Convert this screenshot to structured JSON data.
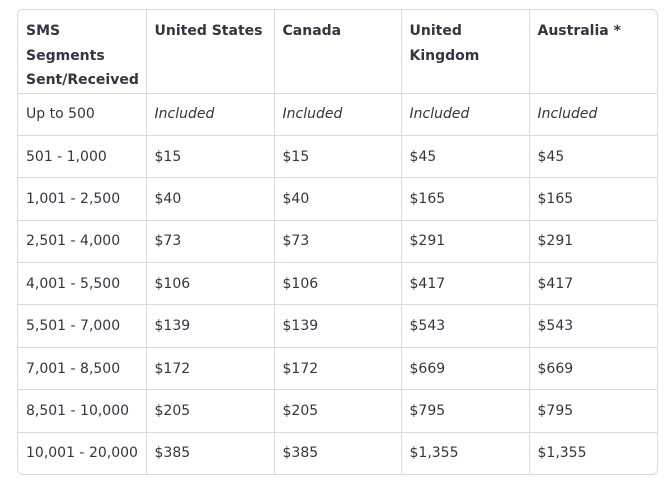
{
  "table": {
    "headers": [
      "SMS Segments Sent/Received",
      "United States",
      "Canada",
      "United Kingdom",
      "Australia *"
    ],
    "rows": [
      [
        "Up to 500",
        "Included",
        "Included",
        "Included",
        "Included"
      ],
      [
        "501 - 1,000",
        "$15",
        "$15",
        "$45",
        "$45"
      ],
      [
        "1,001 - 2,500",
        "$40",
        "$40",
        "$165",
        "$165"
      ],
      [
        "2,501 - 4,000",
        "$73",
        "$73",
        "$291",
        "$291"
      ],
      [
        "4,001 - 5,500",
        "$106",
        "$106",
        "$417",
        "$417"
      ],
      [
        "5,501 - 7,000",
        "$139",
        "$139",
        "$543",
        "$543"
      ],
      [
        "7,001 - 8,500",
        "$172",
        "$172",
        "$669",
        "$669"
      ],
      [
        "8,501 - 10,000",
        "$205",
        "$205",
        "$795",
        "$795"
      ],
      [
        "10,001 - 20,000",
        "$385",
        "$385",
        "$1,355",
        "$1,355"
      ]
    ]
  },
  "colors": {
    "border": "#d9d9e3",
    "text": "#343541"
  }
}
